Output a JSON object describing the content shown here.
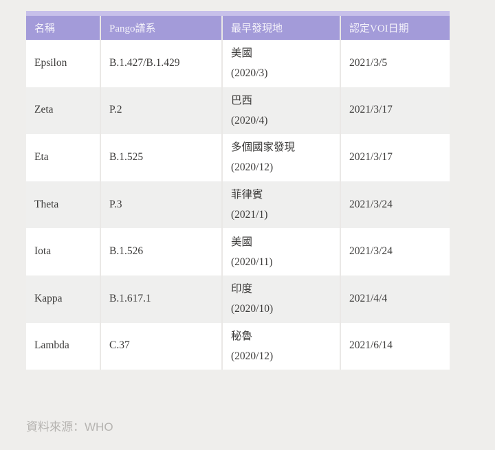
{
  "colors": {
    "page_bg": "#efeeec",
    "table_top_strip": "#c7c0ea",
    "header_bg": "#a39bd9",
    "header_text": "#f4f2fa",
    "row_white": "#ffffff",
    "row_grey": "#efefee",
    "body_text": "#3d3c3b",
    "footer_text": "#b5b3b0"
  },
  "chart_data": {
    "type": "table",
    "columns": [
      "名稱",
      "Pango譜系",
      "最早發現地",
      "認定VOI日期"
    ],
    "rows": [
      {
        "name": "Epsilon",
        "pango": "B.1.427/B.1.429",
        "origin": "美國",
        "origin_date": "(2020/3)",
        "voi_date": "2021/3/5"
      },
      {
        "name": "Zeta",
        "pango": "P.2",
        "origin": "巴西",
        "origin_date": "(2020/4)",
        "voi_date": "2021/3/17"
      },
      {
        "name": "Eta",
        "pango": "B.1.525",
        "origin": "多個國家發現",
        "origin_date": "(2020/12)",
        "voi_date": "2021/3/17"
      },
      {
        "name": "Theta",
        "pango": "P.3",
        "origin": "菲律賓",
        "origin_date": "(2021/1)",
        "voi_date": "2021/3/24"
      },
      {
        "name": "Iota",
        "pango": "B.1.526",
        "origin": "美國",
        "origin_date": "(2020/11)",
        "voi_date": "2021/3/24"
      },
      {
        "name": "Kappa",
        "pango": "B.1.617.1",
        "origin": "印度",
        "origin_date": "(2020/10)",
        "voi_date": "2021/4/4"
      },
      {
        "name": "Lambda",
        "pango": "C.37",
        "origin": "秘魯",
        "origin_date": "(2020/12)",
        "voi_date": "2021/6/14"
      }
    ]
  },
  "footer": {
    "source_label": "資料來源：WHO"
  }
}
